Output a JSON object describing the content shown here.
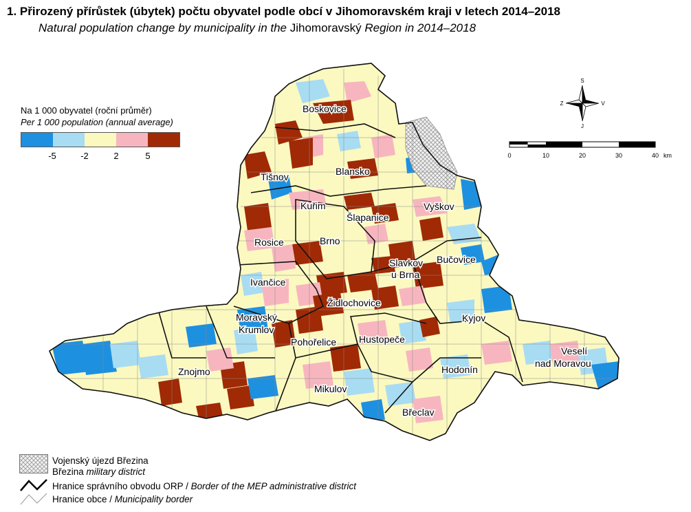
{
  "title": "1. Přirozený přírůstek (úbytek) počtu obyvatel podle obcí v Jihomoravském kraji v letech 2014–2018",
  "subtitle_italic": "Natural population change by municipality in the",
  "subtitle_region": " Jihomoravský ",
  "subtitle_end": "Region in 2014–2018",
  "legend": {
    "heading_cz": "Na 1 000 obyvatel (roční průměr)",
    "heading_en": "Per 1 000 population (annual average)",
    "classes": [
      {
        "color": "#1e90e0"
      },
      {
        "color": "#a8dcf2"
      },
      {
        "color": "#fbf9c0"
      },
      {
        "color": "#f7b6bf"
      },
      {
        "color": "#a02a06"
      }
    ],
    "breaks": [
      "-5",
      "-2",
      "2",
      "5"
    ]
  },
  "compass": {
    "n": "S",
    "s": "J",
    "w": "Z",
    "e": "V"
  },
  "scale": {
    "ticks": [
      "0",
      "10",
      "20",
      "30",
      "40"
    ],
    "unit": "km"
  },
  "towns": {
    "boskovice": "Boskovice",
    "blansko": "Blansko",
    "tisnov": "Tišnov",
    "kurim": "Kuřim",
    "vyskov": "Vyškov",
    "slapanice": "Šlapanice",
    "brno": "Brno",
    "rosice": "Rosice",
    "slavkov_1": "Slavkov",
    "slavkov_2": "u Brna",
    "bucovice": "Bučovice",
    "ivancice": "Ivančice",
    "zidlochovice": "Židlochovice",
    "kyjov": "Kyjov",
    "moravsky_1": "Moravský",
    "moravsky_2": "Krumlov",
    "pohorelice": "Pohořelice",
    "hustopece": "Hustopeče",
    "veseli_1": "Veselí",
    "veseli_2": "nad Moravou",
    "hodonin": "Hodonín",
    "znojmo": "Znojmo",
    "mikulov": "Mikulov",
    "breclav": "Břeclav"
  },
  "bottom_legend": {
    "military_cz": "Vojenský újezd Březina",
    "military_en_name": "Březina",
    "military_en_rest": " military district",
    "orp_cz": "Hranice správního obvodu ORP / ",
    "orp_en": "Border of the MEP administrative district",
    "obec_cz": "Hranice obce / ",
    "obec_en": "Municipality border"
  }
}
